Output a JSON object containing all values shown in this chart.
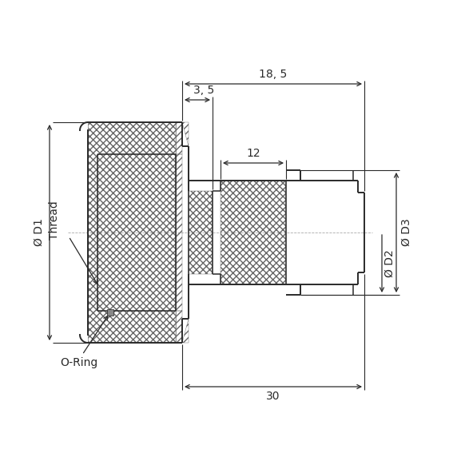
{
  "bg_color": "#ffffff",
  "line_color": "#2a2a2a",
  "dim_color": "#2a2a2a",
  "dim_line_color": "#2a2a2a",
  "annotations": {
    "dim_18_5": "18, 5",
    "dim_3_5": "3, 5",
    "dim_12": "12",
    "dim_30": "30",
    "dim_D1": "Ø D1",
    "dim_D2": "Ø D2",
    "dim_D3": "Ø D3",
    "dim_Thread": "Thread",
    "dim_ORing": "O-Ring"
  },
  "fontsize_dim": 10
}
